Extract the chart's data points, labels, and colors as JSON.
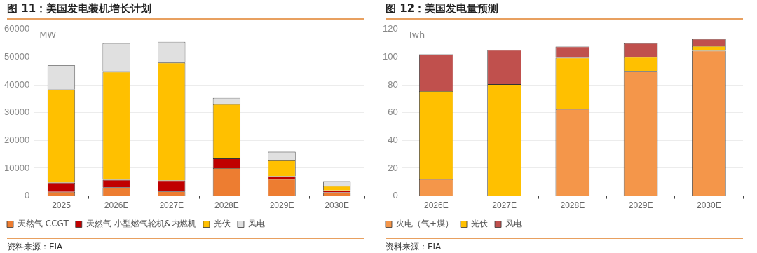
{
  "chart_data": [
    {
      "type": "bar",
      "title": "图 11：美国发电装机增长计划",
      "ylabel": "MW",
      "categories": [
        "2025",
        "2026E",
        "2027E",
        "2028E",
        "2029E",
        "2030E"
      ],
      "stacked": true,
      "series": [
        {
          "name": "天然气 CCGT",
          "color": "#ed7d31",
          "values": [
            1500,
            3100,
            1600,
            10000,
            6100,
            1300
          ]
        },
        {
          "name": "天然气 小型燃气轮机&内燃机",
          "color": "#c00000",
          "values": [
            3300,
            2700,
            4000,
            3500,
            1000,
            700
          ]
        },
        {
          "name": "光伏",
          "color": "#ffc000",
          "values": [
            33600,
            38900,
            42400,
            19500,
            5700,
            1600
          ]
        },
        {
          "name": "风电",
          "color": "#e0e0e0",
          "values": [
            8600,
            10300,
            7500,
            2300,
            3100,
            1700
          ]
        }
      ],
      "ylim": [
        0,
        60000
      ],
      "yticks": [
        0,
        10000,
        20000,
        30000,
        40000,
        50000,
        60000
      ],
      "grid": "y",
      "legend": "bottom",
      "annotations": [
        "资料来源：EIA"
      ]
    },
    {
      "type": "bar",
      "title": "图 12：美国发电量预测",
      "ylabel": "Twh",
      "categories": [
        "2026E",
        "2027E",
        "2028E",
        "2029E",
        "2030E"
      ],
      "stacked": true,
      "series": [
        {
          "name": "火电（气+煤）",
          "color": "#f4964a",
          "values": [
            12,
            0,
            62.5,
            89.5,
            104.5
          ]
        },
        {
          "name": "光伏",
          "color": "#ffc000",
          "values": [
            63.5,
            80.5,
            37,
            10.5,
            3.5
          ]
        },
        {
          "name": "风电",
          "color": "#c0504d",
          "values": [
            26.5,
            24.5,
            8,
            10,
            5
          ]
        }
      ],
      "ylim": [
        0,
        120
      ],
      "yticks": [
        0,
        20,
        40,
        60,
        80,
        100,
        120
      ],
      "grid": "y",
      "legend": "bottom",
      "annotations": [
        "资料来源：EIA"
      ]
    }
  ]
}
